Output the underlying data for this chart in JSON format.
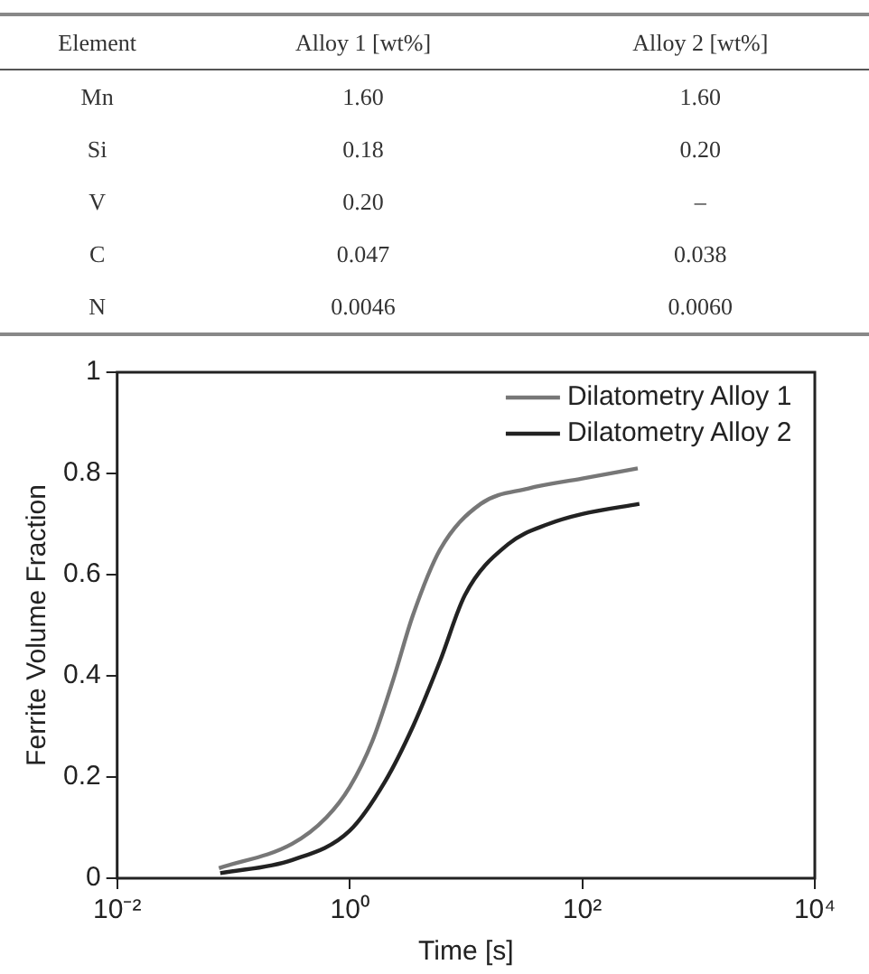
{
  "chart_data": [
    {
      "type": "other",
      "categories": [
        "Element",
        "Alloy 1 [wt%]",
        "Alloy 2 [wt%]"
      ],
      "cell_labels": [
        [
          "Mn",
          "1.60",
          "1.60"
        ],
        [
          "Si",
          "0.18",
          "0.20"
        ],
        [
          "V",
          "0.20",
          "–"
        ],
        [
          "C",
          "0.047",
          "0.038"
        ],
        [
          "N",
          "0.0046",
          "0.0060"
        ]
      ]
    },
    {
      "type": "line",
      "xlabel": "Time [s]",
      "ylabel": "Ferrite Volume Fraction",
      "log": "x",
      "grid": false,
      "legend": "top right",
      "marker": "none",
      "line_style": "solid",
      "xlim": [
        0.01,
        10000
      ],
      "xticks": [
        {
          "value": 0.01,
          "label": "10⁻²"
        },
        {
          "value": 1,
          "label": "10⁰"
        },
        {
          "value": 100,
          "label": "10²"
        },
        {
          "value": 10000,
          "label": "10⁴"
        }
      ],
      "ylim": [
        0,
        1
      ],
      "yticks": [
        0,
        0.2,
        0.4,
        0.6,
        0.8,
        1
      ],
      "series": [
        {
          "name": "Dilatometry Alloy 1",
          "color": "#777777",
          "x": [
            0.075,
            0.32,
            0.63,
            1,
            1.56,
            2.35,
            3.5,
            6,
            13.4,
            34,
            100,
            300
          ],
          "values": [
            0.02,
            0.068,
            0.12,
            0.18,
            0.27,
            0.39,
            0.52,
            0.65,
            0.74,
            0.77,
            0.79,
            0.81
          ]
        },
        {
          "name": "Dilatometry Alloy 2",
          "color": "#222222",
          "x": [
            0.077,
            0.32,
            1,
            2,
            3.5,
            6,
            9.8,
            23,
            51,
            100,
            310
          ],
          "values": [
            0.01,
            0.036,
            0.094,
            0.19,
            0.3,
            0.43,
            0.56,
            0.66,
            0.7,
            0.72,
            0.74
          ]
        }
      ]
    }
  ]
}
